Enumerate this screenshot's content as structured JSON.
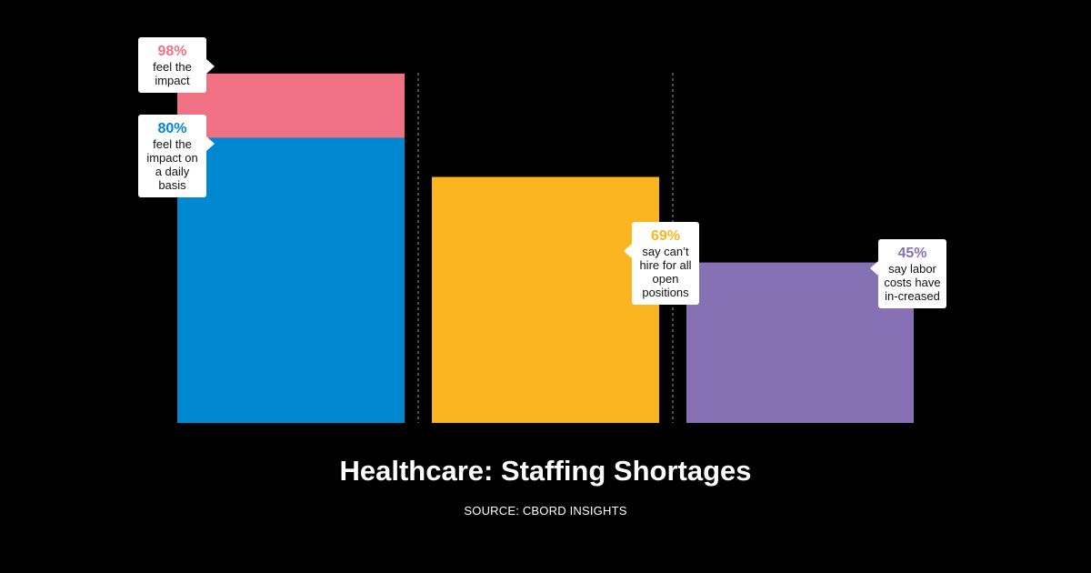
{
  "chart_data": {
    "type": "bar",
    "title": "Healthcare: Staffing Shortages",
    "source": "SOURCE: CBORD INSIGHTS",
    "ylim": [
      0,
      100
    ],
    "grid": false,
    "legend": "none",
    "bars": [
      {
        "segments": [
          {
            "value": 98,
            "label": "98%",
            "description": "feel the impact",
            "color": "#F07084"
          },
          {
            "value": 80,
            "label": "80%",
            "description": "feel the impact on a daily basis",
            "color": "#0288D1"
          }
        ]
      },
      {
        "segments": [
          {
            "value": 69,
            "label": "69%",
            "description": "say can’t hire for all open positions",
            "color": "#FBB520"
          }
        ]
      },
      {
        "segments": [
          {
            "value": 45,
            "label": "45%",
            "description": "say labor costs have in-creased",
            "color": "#8571B4"
          }
        ]
      }
    ]
  },
  "colors": {
    "background": "#000000",
    "divider": "#9A9A9A",
    "label_pink": "#F07084",
    "label_blue": "#0288D1",
    "label_yellow": "#FBB520",
    "label_purple": "#8571B4"
  }
}
